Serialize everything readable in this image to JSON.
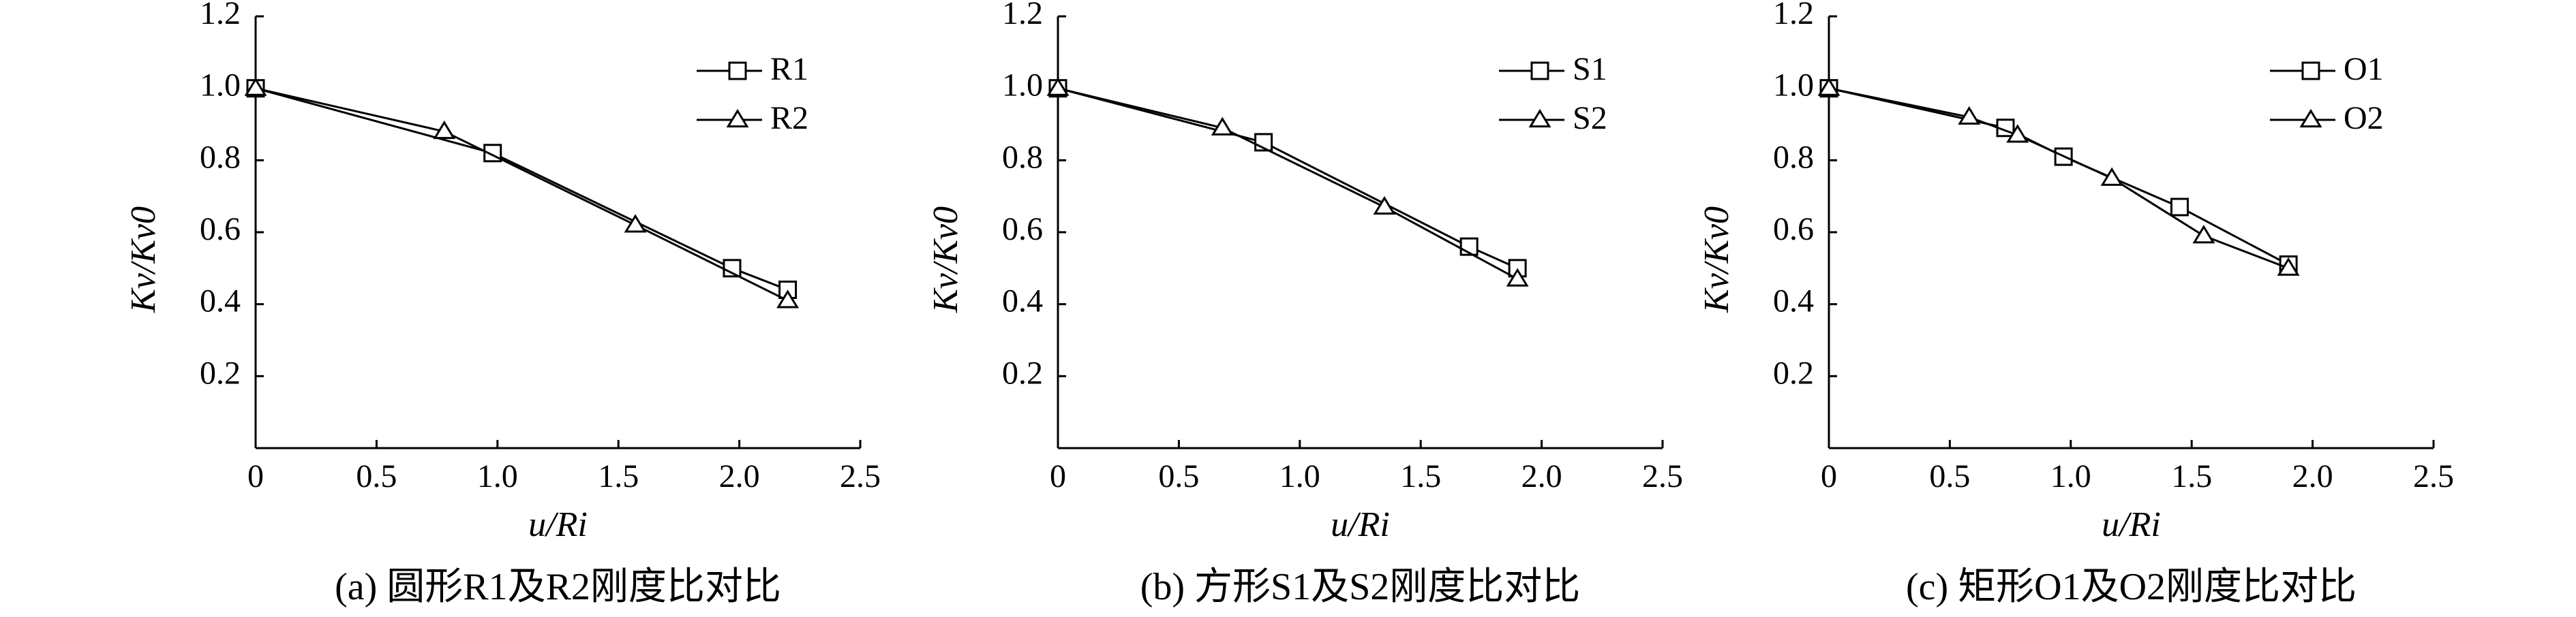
{
  "chart_data": [
    {
      "type": "line",
      "xlabel": "u/Ri",
      "ylabel": "Kv/Kv0",
      "caption": "(a) 圆形R1及R2刚度比对比",
      "xlim": [
        0,
        2.5
      ],
      "ylim": [
        0,
        1.2
      ],
      "xticks": [
        0,
        0.5,
        {
          "value": 1,
          "label": "1.0"
        },
        1.5,
        {
          "value": 2,
          "label": "2.0"
        },
        2.5
      ],
      "yticks": [
        0.2,
        0.4,
        0.6,
        0.8,
        {
          "value": 1,
          "label": "1.0"
        },
        1.2
      ],
      "legend": "upper right",
      "series": [
        {
          "name": "R1",
          "color": "#000000",
          "marker": "square",
          "x": [
            0,
            0.98,
            1.97,
            2.2
          ],
          "values": [
            1.0,
            0.82,
            0.5,
            0.44
          ]
        },
        {
          "name": "R2",
          "color": "#000000",
          "marker": "triangle",
          "x": [
            0,
            0.78,
            1.57,
            2.2
          ],
          "values": [
            1.0,
            0.88,
            0.62,
            0.41
          ]
        }
      ]
    },
    {
      "type": "line",
      "xlabel": "u/Ri",
      "ylabel": "Kv/Kv0",
      "caption": "(b) 方形S1及S2刚度比对比",
      "xlim": [
        0,
        2.5
      ],
      "ylim": [
        0,
        1.2
      ],
      "xticks": [
        0,
        0.5,
        {
          "value": 1,
          "label": "1.0"
        },
        1.5,
        {
          "value": 2,
          "label": "2.0"
        },
        2.5
      ],
      "yticks": [
        0.2,
        0.4,
        0.6,
        0.8,
        {
          "value": 1,
          "label": "1.0"
        },
        1.2
      ],
      "legend": "upper right",
      "series": [
        {
          "name": "S1",
          "color": "#000000",
          "marker": "square",
          "x": [
            0,
            0.85,
            1.7,
            1.9
          ],
          "values": [
            1.0,
            0.85,
            0.56,
            0.5
          ]
        },
        {
          "name": "S2",
          "color": "#000000",
          "marker": "triangle",
          "x": [
            0,
            0.68,
            1.35,
            1.9
          ],
          "values": [
            1.0,
            0.89,
            0.67,
            0.47
          ]
        }
      ]
    },
    {
      "type": "line",
      "xlabel": "u/Ri",
      "ylabel": "Kv/Kv0",
      "caption": "(c) 矩形O1及O2刚度比对比",
      "xlim": [
        0,
        2.5
      ],
      "ylim": [
        0,
        1.2
      ],
      "xticks": [
        0,
        0.5,
        {
          "value": 1,
          "label": "1.0"
        },
        1.5,
        {
          "value": 2,
          "label": "2.0"
        },
        2.5
      ],
      "yticks": [
        0.2,
        0.4,
        0.6,
        0.8,
        {
          "value": 1,
          "label": "1.0"
        },
        1.2
      ],
      "legend": "upper right",
      "series": [
        {
          "name": "O1",
          "color": "#000000",
          "marker": "square",
          "x": [
            0,
            0.73,
            0.97,
            1.45,
            1.9
          ],
          "values": [
            1.0,
            0.89,
            0.81,
            0.67,
            0.51
          ]
        },
        {
          "name": "O2",
          "color": "#000000",
          "marker": "triangle",
          "x": [
            0,
            0.58,
            0.78,
            1.17,
            1.55,
            1.9
          ],
          "values": [
            1.0,
            0.92,
            0.87,
            0.75,
            0.59,
            0.5
          ]
        }
      ]
    }
  ]
}
